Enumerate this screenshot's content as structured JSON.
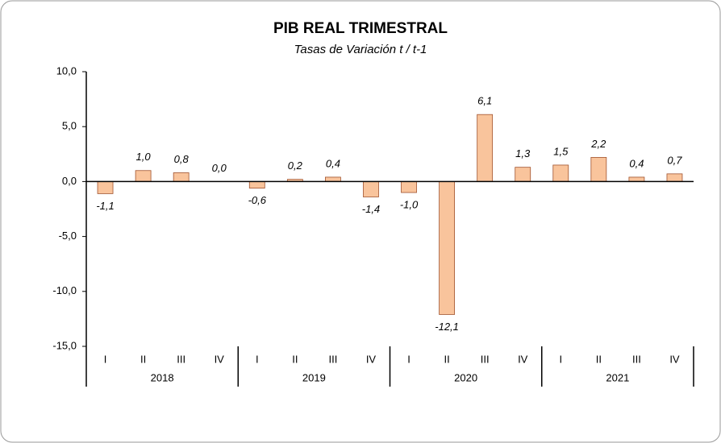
{
  "chart_data": {
    "type": "bar",
    "title": "PIB REAL TRIMESTRAL",
    "subtitle": "Tasas de Variación t / t-1",
    "categories": [
      "I",
      "II",
      "III",
      "IV",
      "I",
      "II",
      "III",
      "IV",
      "I",
      "II",
      "III",
      "IV",
      "I",
      "II",
      "III",
      "IV"
    ],
    "years": [
      "2018",
      "2019",
      "2020",
      "2021"
    ],
    "values": [
      -1.1,
      1.0,
      0.8,
      0.0,
      -0.6,
      0.2,
      0.4,
      -1.4,
      -1.0,
      -12.1,
      6.1,
      1.3,
      1.5,
      2.2,
      0.4,
      0.7
    ],
    "value_labels": [
      "-1,1",
      "1,0",
      "0,8",
      "0,0",
      "-0,6",
      "0,2",
      "0,4",
      "-1,4",
      "-1,0",
      "-12,1",
      "6,1",
      "1,3",
      "1,5",
      "2,2",
      "0,4",
      "0,7"
    ],
    "color": "#f9c49c",
    "ylim": [
      -15,
      10
    ],
    "yticks": [
      {
        "value": 10,
        "label": "10,0"
      },
      {
        "value": 5,
        "label": "5,0"
      },
      {
        "value": 0,
        "label": "0,0"
      },
      {
        "value": -5,
        "label": "-5,0"
      },
      {
        "value": -10,
        "label": "-10,0"
      },
      {
        "value": -15,
        "label": "-15,0"
      }
    ],
    "grid": false
  }
}
